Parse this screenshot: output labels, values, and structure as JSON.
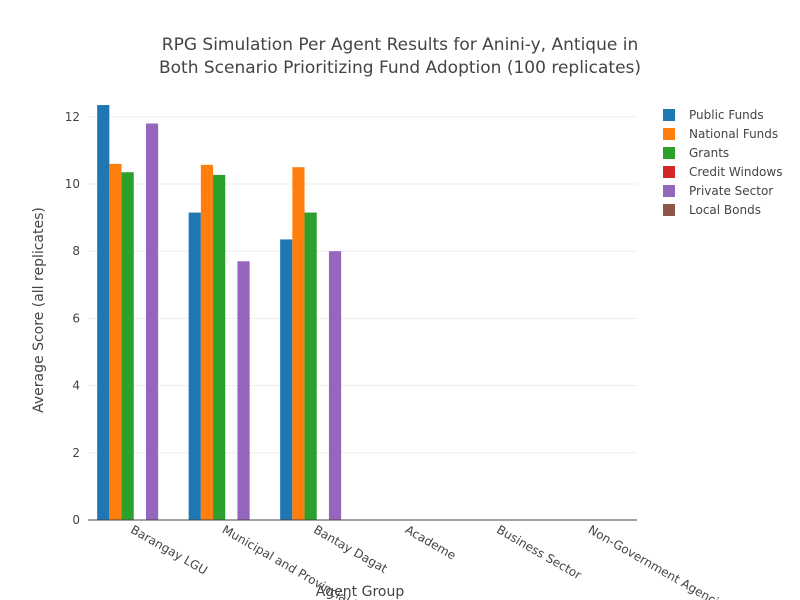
{
  "chart_data": {
    "type": "bar",
    "title_lines": [
      "RPG Simulation Per Agent Results for Anini-y, Antique in",
      "Both Scenario Prioritizing Fund Adoption (100 replicates)"
    ],
    "xlabel": "Agent Group",
    "ylabel": "Average Score (all replicates)",
    "ylim": [
      0,
      12.5
    ],
    "yticks": [
      0,
      2,
      4,
      6,
      8,
      10,
      12
    ],
    "grid": true,
    "legend_position": "top-right",
    "categories": [
      "Barangay LGU",
      "Municipal and Provincial LGU",
      "Bantay Dagat",
      "Academe",
      "Business Sector",
      "Non-Government Agencies"
    ],
    "series": [
      {
        "name": "Public Funds",
        "color": "#1f77b4",
        "values": [
          12.35,
          9.15,
          8.35,
          null,
          null,
          null
        ]
      },
      {
        "name": "National Funds",
        "color": "#ff7f0e",
        "values": [
          10.6,
          10.57,
          10.5,
          null,
          null,
          null
        ]
      },
      {
        "name": "Grants",
        "color": "#2ca02c",
        "values": [
          10.35,
          10.27,
          9.15,
          null,
          null,
          null
        ]
      },
      {
        "name": "Credit Windows",
        "color": "#d62728",
        "values": [
          null,
          null,
          null,
          null,
          null,
          null
        ]
      },
      {
        "name": "Private Sector",
        "color": "#9467bd",
        "values": [
          11.8,
          7.7,
          8.0,
          null,
          null,
          null
        ]
      },
      {
        "name": "Local Bonds",
        "color": "#8c564b",
        "values": [
          null,
          null,
          null,
          null,
          null,
          null
        ]
      }
    ]
  }
}
